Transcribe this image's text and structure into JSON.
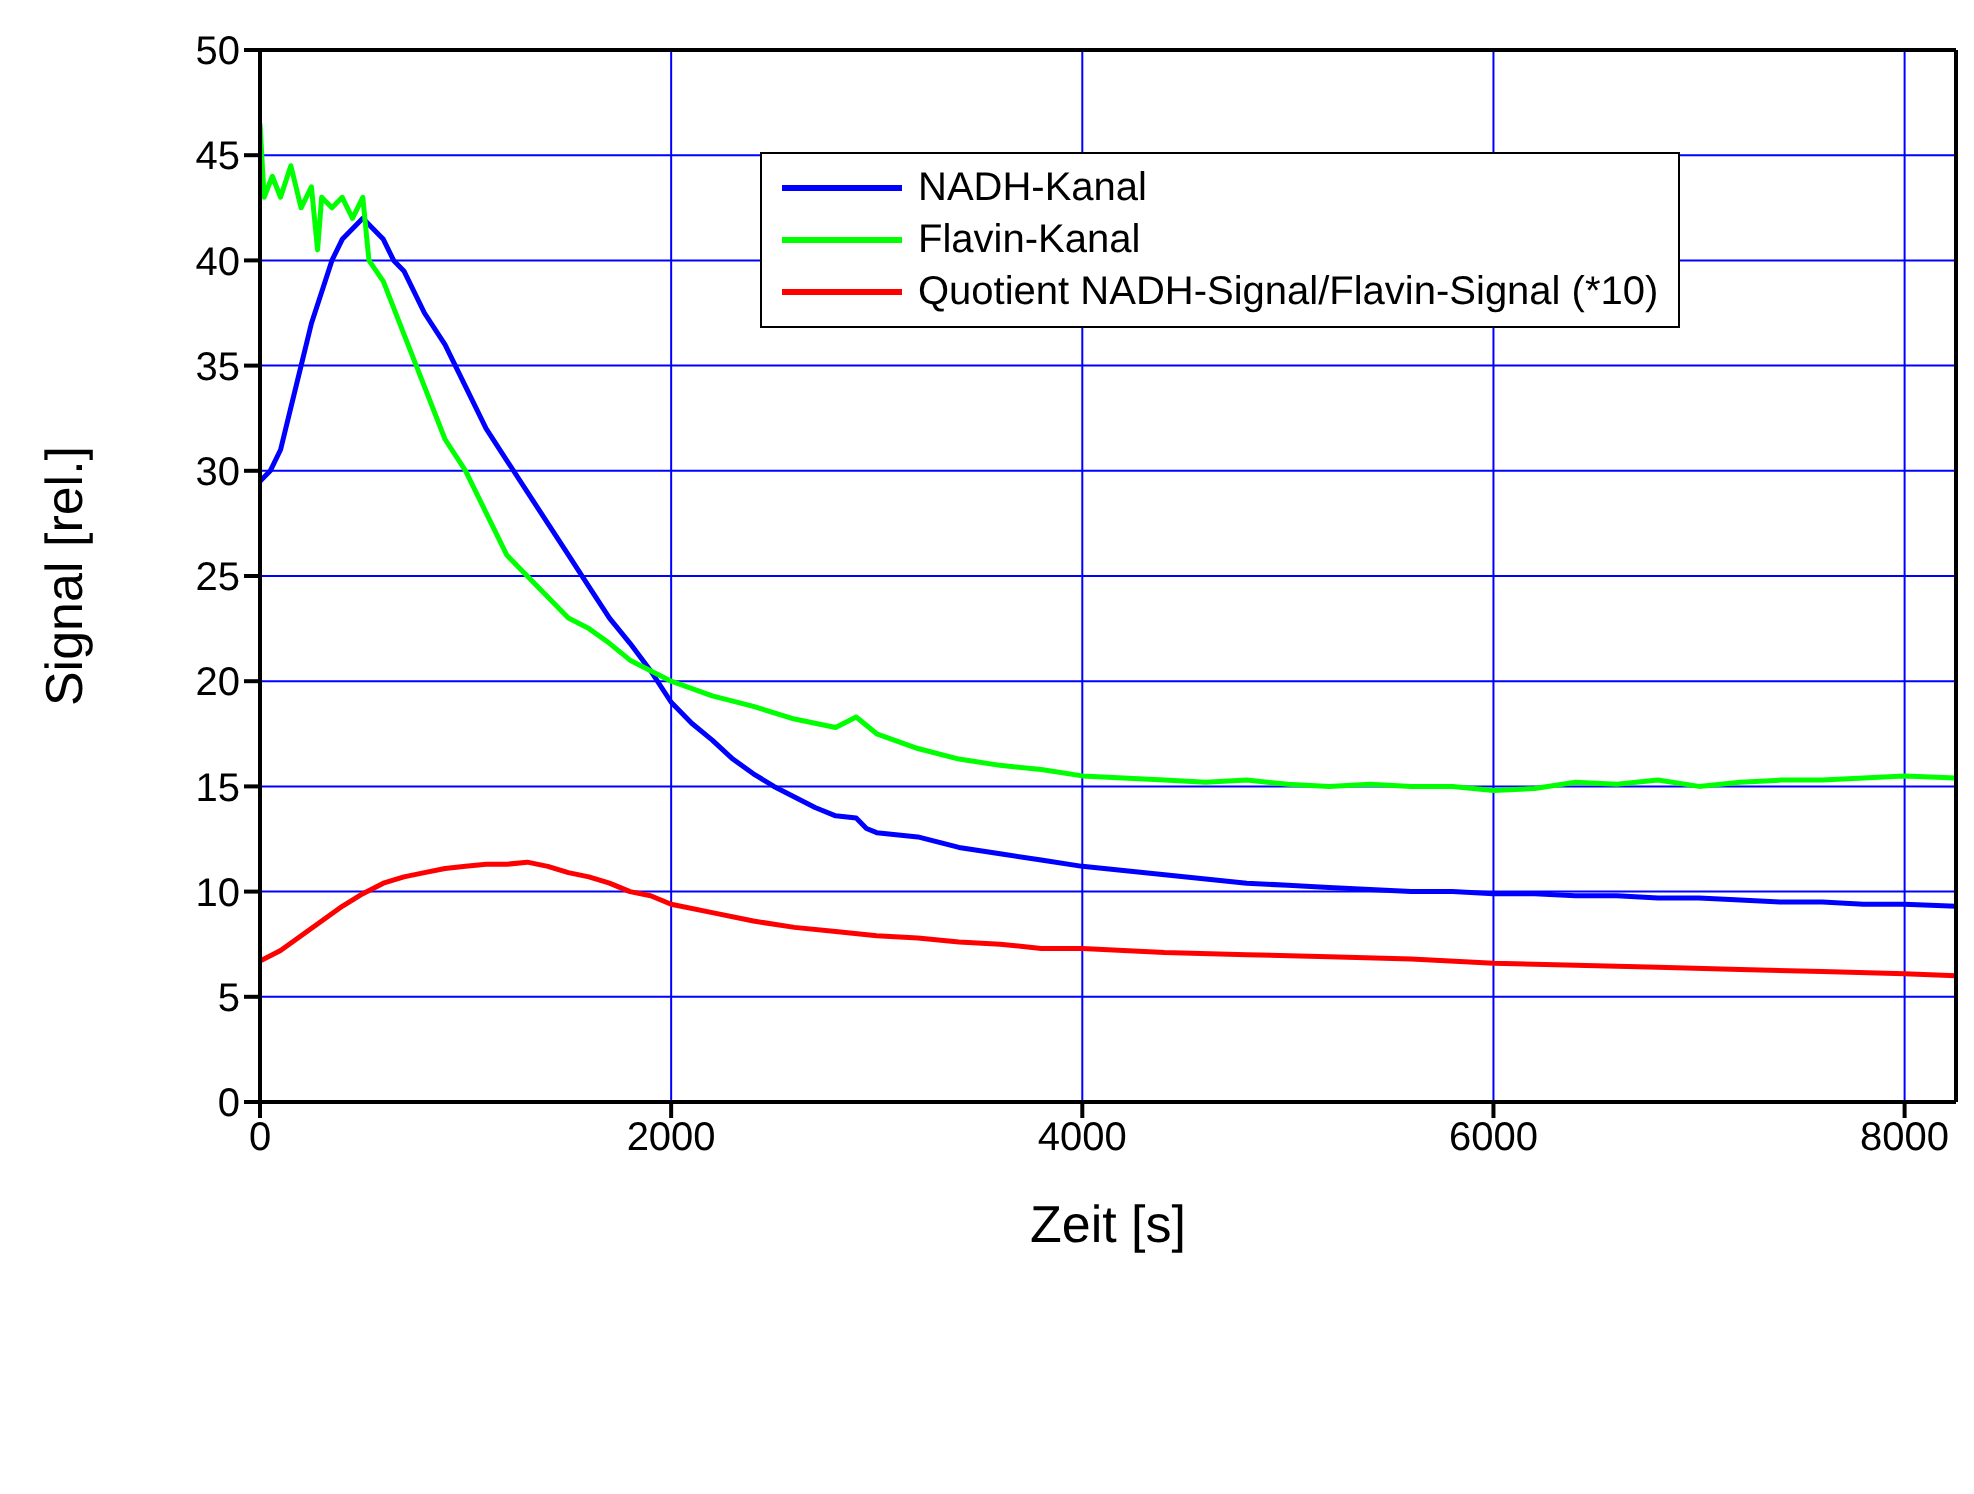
{
  "chart_data": {
    "type": "line",
    "xlabel": "Zeit [s]",
    "ylabel": "Signal [rel.]",
    "xlim": [
      0,
      8250
    ],
    "xticks": [
      0,
      2000,
      4000,
      6000,
      8000
    ],
    "ylim": [
      0,
      50
    ],
    "yticks": [
      0,
      5,
      10,
      15,
      20,
      25,
      30,
      35,
      40,
      45,
      50
    ],
    "grid": true,
    "legend": "top right",
    "marker": "none",
    "line_style": "solid",
    "series": [
      {
        "name": "NADH-Kanal",
        "color": "#0000ff",
        "x": [
          0,
          50,
          100,
          150,
          200,
          250,
          300,
          350,
          400,
          450,
          500,
          550,
          600,
          650,
          700,
          800,
          900,
          1000,
          1100,
          1200,
          1300,
          1400,
          1500,
          1600,
          1700,
          1800,
          1900,
          2000,
          2100,
          2200,
          2300,
          2400,
          2500,
          2600,
          2700,
          2800,
          2900,
          2950,
          3000,
          3200,
          3400,
          3600,
          3800,
          4000,
          4200,
          4400,
          4600,
          4800,
          5000,
          5200,
          5400,
          5600,
          5800,
          6000,
          6200,
          6400,
          6600,
          6800,
          7000,
          7200,
          7400,
          7600,
          7800,
          8000,
          8250
        ],
        "values": [
          29.5,
          30,
          31,
          33,
          35,
          37,
          38.5,
          40,
          41,
          41.5,
          42,
          41.5,
          41,
          40,
          39.5,
          37.5,
          36,
          34,
          32,
          30.5,
          29,
          27.5,
          26,
          24.5,
          23,
          21.8,
          20.5,
          19,
          18,
          17.2,
          16.3,
          15.6,
          15,
          14.5,
          14,
          13.6,
          13.5,
          13,
          12.8,
          12.6,
          12.1,
          11.8,
          11.5,
          11.2,
          11,
          10.8,
          10.6,
          10.4,
          10.3,
          10.2,
          10.1,
          10,
          10,
          9.9,
          9.9,
          9.8,
          9.8,
          9.7,
          9.7,
          9.6,
          9.5,
          9.5,
          9.4,
          9.4,
          9.3
        ]
      },
      {
        "name": "Flavin-Kanal",
        "color": "#00ff00",
        "x": [
          0,
          20,
          60,
          100,
          150,
          200,
          250,
          280,
          300,
          350,
          400,
          450,
          500,
          530,
          600,
          700,
          800,
          900,
          1000,
          1100,
          1200,
          1300,
          1400,
          1500,
          1600,
          1700,
          1800,
          1900,
          2000,
          2200,
          2400,
          2600,
          2800,
          2900,
          3000,
          3200,
          3400,
          3600,
          3800,
          4000,
          4200,
          4400,
          4600,
          4800,
          5000,
          5200,
          5400,
          5600,
          5800,
          6000,
          6200,
          6400,
          6600,
          6800,
          7000,
          7200,
          7400,
          7600,
          7800,
          8000,
          8250
        ],
        "values": [
          46.5,
          43,
          44,
          43,
          44.5,
          42.5,
          43.5,
          40.5,
          43,
          42.5,
          43,
          42,
          43,
          40,
          39,
          36.5,
          34,
          31.5,
          30,
          28,
          26,
          25,
          24,
          23,
          22.5,
          21.8,
          21,
          20.5,
          20,
          19.3,
          18.8,
          18.2,
          17.8,
          18.3,
          17.5,
          16.8,
          16.3,
          16,
          15.8,
          15.5,
          15.4,
          15.3,
          15.2,
          15.3,
          15.1,
          15,
          15.1,
          15,
          15,
          14.8,
          14.9,
          15.2,
          15.1,
          15.3,
          15,
          15.2,
          15.3,
          15.3,
          15.4,
          15.5,
          15.4
        ]
      },
      {
        "name": "Quotient NADH-Signal/Flavin-Signal (*10)",
        "color": "#ff0000",
        "x": [
          0,
          100,
          200,
          300,
          400,
          500,
          600,
          700,
          800,
          900,
          1000,
          1100,
          1200,
          1300,
          1400,
          1500,
          1600,
          1700,
          1800,
          1900,
          2000,
          2200,
          2400,
          2600,
          2800,
          3000,
          3200,
          3400,
          3600,
          3800,
          4000,
          4400,
          4800,
          5200,
          5600,
          6000,
          6400,
          6800,
          7200,
          7600,
          8000,
          8250
        ],
        "values": [
          6.7,
          7.2,
          7.9,
          8.6,
          9.3,
          9.9,
          10.4,
          10.7,
          10.9,
          11.1,
          11.2,
          11.3,
          11.3,
          11.4,
          11.2,
          10.9,
          10.7,
          10.4,
          10,
          9.8,
          9.4,
          9,
          8.6,
          8.3,
          8.1,
          7.9,
          7.8,
          7.6,
          7.5,
          7.3,
          7.3,
          7.1,
          7,
          6.9,
          6.8,
          6.6,
          6.5,
          6.4,
          6.3,
          6.2,
          6.1,
          6
        ]
      }
    ]
  }
}
